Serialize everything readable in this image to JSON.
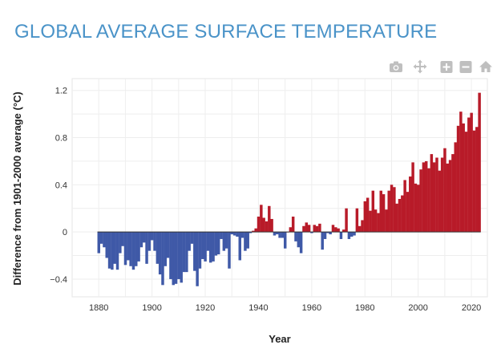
{
  "page": {
    "title": "GLOBAL AVERAGE SURFACE TEMPERATURE"
  },
  "modebar": {
    "icons": [
      "camera-icon",
      "pan-icon",
      "zoom-in-icon",
      "zoom-out-icon",
      "home-icon"
    ],
    "icon_color": "#bfbfbf"
  },
  "chart_data": {
    "type": "bar",
    "xlabel": "Year",
    "ylabel": "Difference from 1901-2000 average (°C)",
    "xlim": [
      1870,
      2026
    ],
    "ylim": [
      -0.55,
      1.3
    ],
    "x_ticks": [
      1880,
      1900,
      1920,
      1940,
      1960,
      1980,
      2000,
      2020
    ],
    "y_ticks": [
      -0.4,
      0,
      0.4,
      0.8,
      1.2
    ],
    "y_tick_labels": [
      "−0.4",
      "0",
      "0.4",
      "0.8",
      "1.2"
    ],
    "grid": true,
    "legend": "none",
    "colors": {
      "positive": "#b81b29",
      "negative": "#3f59a7"
    },
    "start_year": 1880,
    "values": [
      -0.18,
      -0.1,
      -0.13,
      -0.22,
      -0.31,
      -0.32,
      -0.27,
      -0.32,
      -0.18,
      -0.12,
      -0.28,
      -0.24,
      -0.29,
      -0.32,
      -0.29,
      -0.25,
      -0.13,
      -0.09,
      -0.27,
      -0.16,
      -0.07,
      -0.16,
      -0.27,
      -0.36,
      -0.45,
      -0.29,
      -0.22,
      -0.4,
      -0.45,
      -0.44,
      -0.4,
      -0.43,
      -0.34,
      -0.34,
      -0.16,
      -0.1,
      -0.33,
      -0.46,
      -0.31,
      -0.23,
      -0.25,
      -0.16,
      -0.26,
      -0.25,
      -0.2,
      -0.19,
      -0.06,
      -0.16,
      -0.14,
      -0.31,
      -0.02,
      -0.03,
      -0.04,
      -0.24,
      -0.05,
      -0.16,
      -0.14,
      -0.01,
      0.01,
      0.03,
      0.13,
      0.23,
      0.12,
      0.09,
      0.22,
      0.11,
      -0.03,
      -0.02,
      -0.05,
      -0.05,
      -0.14,
      0.0,
      0.04,
      0.13,
      -0.08,
      -0.13,
      -0.18,
      0.05,
      0.08,
      0.06,
      -0.01,
      0.06,
      0.05,
      0.07,
      -0.15,
      -0.06,
      -0.01,
      -0.02,
      0.06,
      0.04,
      0.03,
      -0.06,
      0.02,
      0.2,
      -0.06,
      -0.04,
      -0.03,
      0.2,
      0.05,
      0.1,
      0.26,
      0.29,
      0.18,
      0.35,
      0.19,
      0.16,
      0.35,
      0.32,
      0.19,
      0.35,
      0.4,
      0.38,
      0.24,
      0.28,
      0.31,
      0.44,
      0.34,
      0.47,
      0.59,
      0.41,
      0.4,
      0.53,
      0.59,
      0.6,
      0.54,
      0.66,
      0.59,
      0.63,
      0.52,
      0.63,
      0.71,
      0.58,
      0.61,
      0.66,
      0.76,
      0.9,
      1.02,
      0.92,
      0.85,
      0.97,
      1.01,
      0.86,
      0.89,
      1.18
    ]
  }
}
